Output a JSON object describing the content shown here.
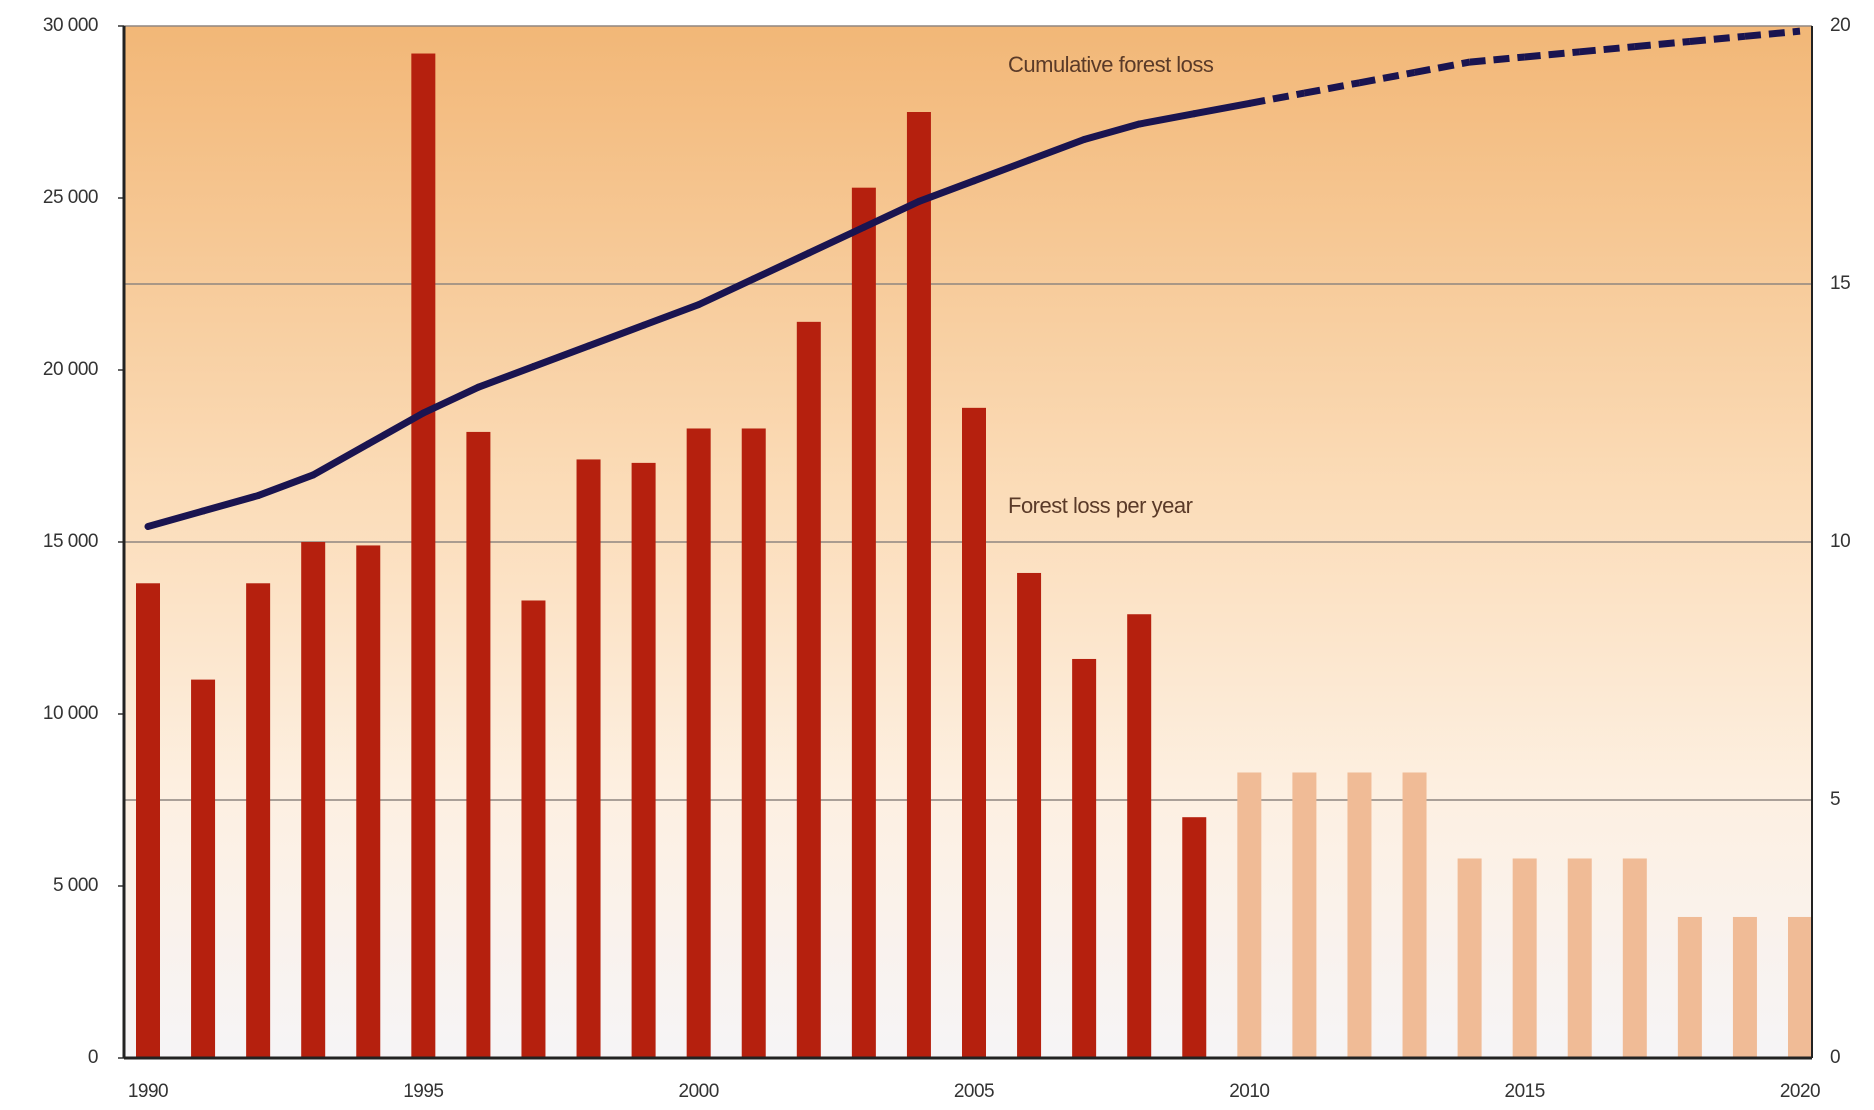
{
  "chart_data": {
    "type": "bar",
    "categories": [
      1990,
      null,
      null,
      null,
      null,
      1995,
      null,
      null,
      null,
      null,
      2000,
      null,
      null,
      null,
      null,
      2005,
      null,
      null,
      null,
      null,
      2010,
      null,
      null,
      null,
      null,
      2015,
      null,
      null,
      null,
      null,
      2020
    ],
    "projected": [
      false,
      false,
      false,
      false,
      false,
      false,
      false,
      false,
      false,
      false,
      false,
      false,
      false,
      false,
      false,
      false,
      false,
      false,
      false,
      false,
      true,
      true,
      true,
      true,
      true,
      true,
      true,
      true,
      true,
      true,
      true
    ],
    "series": [
      {
        "name": "Forest loss per year",
        "color": "#b5200e",
        "projected_color": "#f0bb96",
        "values": [
          13800,
          11000,
          13800,
          15000,
          14900,
          29200,
          18200,
          13300,
          17400,
          17300,
          18300,
          18300,
          21400,
          25300,
          27500,
          18900,
          14100,
          11600,
          12900,
          7000,
          8300,
          8300,
          8300,
          8300,
          5800,
          5800,
          5800,
          5800,
          4100,
          4100,
          4100
        ]
      },
      {
        "name": "Cumulative forest loss",
        "type": "line",
        "axis": "y2",
        "color": "#1a1450",
        "values": [
          10.3,
          10.6,
          10.9,
          11.3,
          11.9,
          12.5,
          13.0,
          13.4,
          13.8,
          14.2,
          14.6,
          15.1,
          15.6,
          16.1,
          16.6,
          17.0,
          17.4,
          17.8,
          18.1,
          18.3,
          18.5,
          18.7,
          18.9,
          19.1,
          19.3,
          19.4,
          19.5,
          19.6,
          19.7,
          19.8,
          19.9
        ]
      }
    ],
    "ylim": [
      0,
      30000
    ],
    "yticks": [
      {
        "value": 0,
        "label": "0"
      },
      {
        "value": 5000,
        "label": "5 000"
      },
      {
        "value": 10000,
        "label": "10 000"
      },
      {
        "value": 15000,
        "label": "15 000"
      },
      {
        "value": 20000,
        "label": "20 000"
      },
      {
        "value": 25000,
        "label": "25 000"
      },
      {
        "value": 30000,
        "label": "30 000"
      }
    ],
    "y2lim": [
      0,
      20
    ],
    "y2ticks": [
      0,
      5,
      10,
      15,
      20
    ],
    "grid": true
  }
}
